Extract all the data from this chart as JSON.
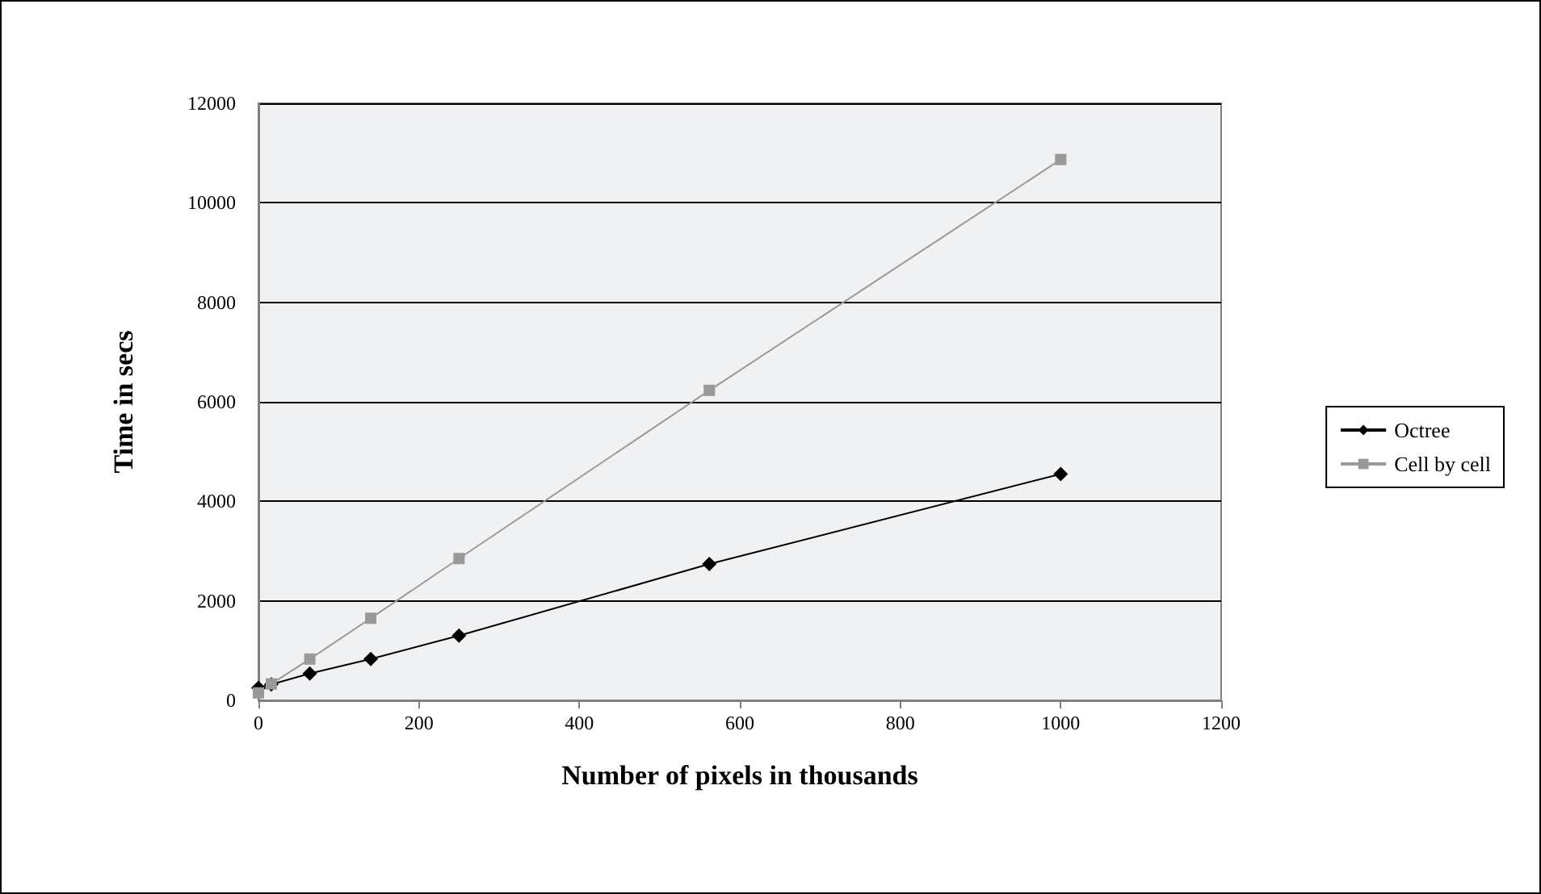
{
  "chart_data": {
    "type": "line",
    "xlabel": "Number of pixels in thousands",
    "ylabel": "Time in secs",
    "xlim": [
      0,
      1200
    ],
    "xticks": [
      0,
      200,
      400,
      600,
      800,
      1000,
      1200
    ],
    "ylim": [
      0,
      12000
    ],
    "yticks": [
      0,
      2000,
      4000,
      6000,
      8000,
      10000,
      12000
    ],
    "grid": "y",
    "legend": "right",
    "line_style": "solid",
    "series": [
      {
        "name": "Octree",
        "color": "#000000",
        "marker": "diamond",
        "x": [
          0,
          16,
          64,
          140,
          250,
          562,
          1000
        ],
        "values": [
          250,
          320,
          540,
          830,
          1300,
          2740,
          4550
        ]
      },
      {
        "name": "Cell by cell",
        "color": "#999999",
        "marker": "square",
        "x": [
          0,
          16,
          64,
          140,
          250,
          562,
          1000
        ],
        "values": [
          150,
          330,
          830,
          1650,
          2850,
          6230,
          10870
        ]
      }
    ]
  }
}
